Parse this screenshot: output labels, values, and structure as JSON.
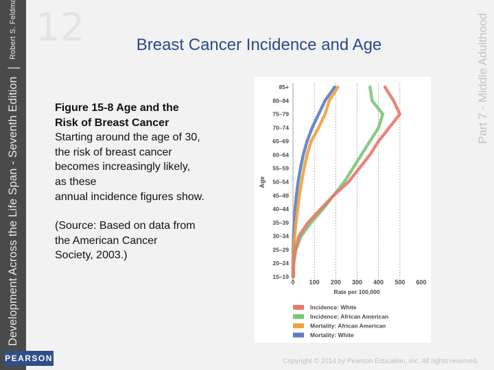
{
  "slide": {
    "title": "Breast Cancer Incidence and Age",
    "figure_title_line1": "Figure 15-8 Age and the",
    "figure_title_line2": "Risk of Breast Cancer",
    "caption_lines": [
      "Starting around the age of 30,",
      "the risk of breast cancer",
      "becomes increasingly likely,",
      "as these",
      "annual incidence figures show."
    ],
    "source_lines": [
      "(Source: Based on data from",
      "the American Cancer",
      "Society, 2003.)"
    ],
    "copyright": "Copyright © 2014 by Pearson Education, Inc. All rights reserved."
  },
  "sidebar": {
    "book_title": "Development Across the Life Span - Seventh Edition",
    "author": "Robert S. Feldman",
    "publisher": "PEARSON"
  },
  "watermark": {
    "part_label": "Part 7 - Middle Adulthood",
    "chapter_number": "12"
  },
  "chart_data": {
    "type": "line",
    "orientation": "horizontal",
    "title": "",
    "xlabel": "Rate per 100,000",
    "ylabel": "Age",
    "xlim": [
      0,
      600
    ],
    "x_ticks": [
      "0",
      "100",
      "200",
      "300",
      "400",
      "500",
      "600"
    ],
    "categories": [
      "15–19",
      "20–24",
      "25–29",
      "30–34",
      "35–39",
      "40–44",
      "45–49",
      "50–54",
      "55–59",
      "60–64",
      "65–69",
      "70–74",
      "75–79",
      "80–84",
      "85+"
    ],
    "grid_x_dashed": [
      100,
      200,
      300,
      400,
      500
    ],
    "series": [
      {
        "name": "Incidence: White",
        "color": "#e8786a",
        "values": [
          2,
          3,
          10,
          28,
          70,
          130,
          190,
          260,
          310,
          360,
          400,
          450,
          500,
          470,
          430
        ]
      },
      {
        "name": "Incidence: African American",
        "color": "#7cc47c",
        "values": [
          2,
          4,
          14,
          38,
          85,
          140,
          190,
          240,
          280,
          320,
          360,
          400,
          420,
          370,
          360
        ]
      },
      {
        "name": "Mortality: African American",
        "color": "#f0a040",
        "values": [
          0,
          1,
          3,
          8,
          14,
          22,
          30,
          40,
          52,
          66,
          85,
          120,
          150,
          170,
          210
        ]
      },
      {
        "name": "Mortality: White",
        "color": "#5a7ec0",
        "values": [
          0,
          0,
          1,
          3,
          6,
          10,
          16,
          24,
          35,
          48,
          66,
          90,
          120,
          150,
          195
        ]
      }
    ],
    "legend": [
      "Incidence: White",
      "Incidence: African American",
      "Mortality: African American",
      "Mortality: White"
    ],
    "legend_position": "bottom"
  }
}
